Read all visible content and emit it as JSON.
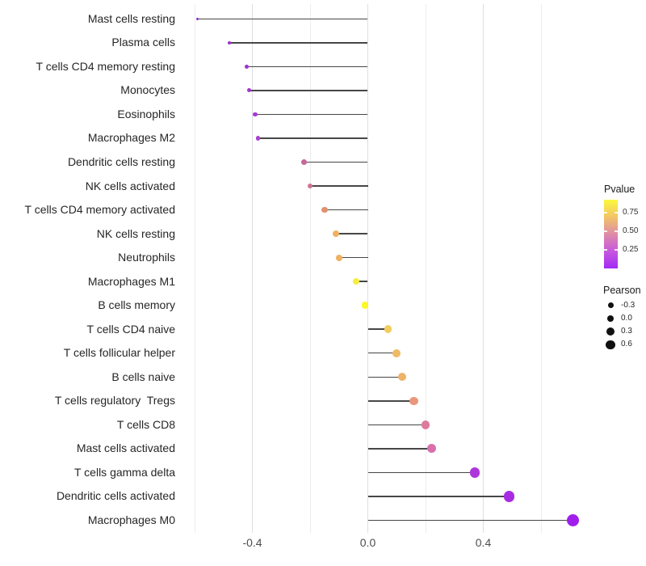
{
  "figure": {
    "background": "#FFFFFF",
    "title": ""
  },
  "legend_pvalue": {
    "title": "Pvalue",
    "ticks": [
      {
        "label": "0.75",
        "value": 0.75
      },
      {
        "label": "0.50",
        "value": 0.5
      },
      {
        "label": "0.25",
        "value": 0.25
      }
    ],
    "gradient_stops_bottom_to_top": [
      "#A22BF2",
      "#C757DF",
      "#DE8CA8",
      "#F2C566",
      "#FBF83C"
    ],
    "value_range_bottom_to_top": [
      0,
      0.925
    ]
  },
  "legend_pearson": {
    "title": "Pearson",
    "dot_color": "#101010",
    "items": [
      {
        "label": "-0.3",
        "diameter": 7
      },
      {
        "label": "0.0",
        "diameter": 8.5
      },
      {
        "label": "0.3",
        "diameter": 10
      },
      {
        "label": "0.6",
        "diameter": 11.5
      }
    ]
  },
  "x_axis": {
    "major_ticks": [
      {
        "label": "-0.4",
        "value": -0.4
      },
      {
        "label": "0.0",
        "value": 0.0
      },
      {
        "label": "0.4",
        "value": 0.4
      }
    ],
    "minor_ticks": [
      -0.6,
      -0.2,
      0.2,
      0.6
    ]
  },
  "style_colors": {
    "major_grid": "#DEDEDE",
    "minor_grid": "#EDEDED",
    "stem": "#474747",
    "axis_text": "#4D4D4D",
    "label_text": "#262626"
  },
  "chart_data": {
    "type": "lollipop",
    "orientation": "horizontal",
    "title": "",
    "xlabel": "",
    "ylabel": "",
    "xlim": [
      -0.66,
      0.78
    ],
    "baseline": 0.0,
    "grid": "vertical-only",
    "legend_position": "right",
    "categories": [
      "Mast cells resting",
      "Plasma cells",
      "T cells CD4 memory resting",
      "Monocytes",
      "Eosinophils",
      "Macrophages M2",
      "Dendritic cells resting",
      "NK cells activated",
      "T cells CD4 memory activated",
      "NK cells resting",
      "Neutrophils",
      "Macrophages M1",
      "B cells memory",
      "T cells CD4 naive",
      "T cells follicular helper",
      "B cells naive",
      "T cells regulatory  Tregs",
      "T cells CD8",
      "Mast cells activated",
      "T cells gamma delta",
      "Dendritic cells activated",
      "Macrophages M0"
    ],
    "series": [
      {
        "name": "Pearson",
        "values": [
          -0.59,
          -0.48,
          -0.42,
          -0.41,
          -0.39,
          -0.38,
          -0.22,
          -0.2,
          -0.15,
          -0.11,
          -0.1,
          -0.04,
          -0.01,
          0.07,
          0.1,
          0.12,
          0.16,
          0.2,
          0.22,
          0.37,
          0.49,
          0.71
        ]
      },
      {
        "name": "Pvalue (estimated from color scale)",
        "values": [
          0.02,
          0.07,
          0.08,
          0.09,
          0.1,
          0.11,
          0.33,
          0.39,
          0.53,
          0.65,
          0.65,
          0.86,
          0.91,
          0.76,
          0.68,
          0.66,
          0.55,
          0.42,
          0.36,
          0.12,
          0.07,
          0.03
        ]
      }
    ],
    "point_colors": [
      "#8B2BD0",
      "#9C33CA",
      "#9E33CD",
      "#A137CF",
      "#A63AD4",
      "#AB40D2",
      "#C4689D",
      "#D07395",
      "#E19070",
      "#EFB163",
      "#EFB160",
      "#F6ED3E",
      "#FDF628",
      "#F2CC5E",
      "#EFBA66",
      "#EEB269",
      "#E8977D",
      "#DC7B9A",
      "#D870AC",
      "#AC35DC",
      "#A82BE2",
      "#A01EEC"
    ]
  }
}
